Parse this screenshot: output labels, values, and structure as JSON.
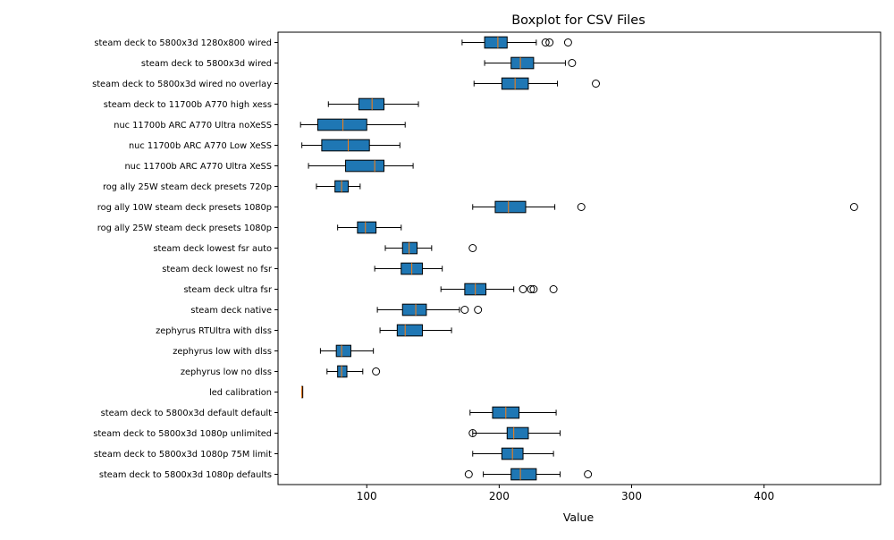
{
  "chart_data": {
    "type": "boxplot",
    "orientation": "horizontal",
    "title": "Boxplot for CSV Files",
    "xlabel": "Value",
    "ylabel": "",
    "xlim": [
      33,
      488
    ],
    "xticks": [
      100,
      200,
      300,
      400
    ],
    "grid": false,
    "legend": "none",
    "colors": {
      "box_fill": "#1f77b4",
      "median": "#ff7f0e",
      "edge": "#000000"
    },
    "categories": [
      "steam deck to 5800x3d 1280x800 wired",
      "steam deck to 5800x3d wired",
      "steam deck to 5800x3d wired no overlay",
      "steam deck to 11700b A770 high xess",
      "nuc 11700b ARC A770 Ultra noXeSS",
      "nuc 11700b ARC A770 Low XeSS",
      "nuc 11700b ARC A770 Ultra XeSS",
      "rog ally 25W steam deck presets 720p",
      "rog ally 10W steam deck presets 1080p",
      "rog ally 25W steam deck presets 1080p",
      "steam deck lowest fsr auto",
      "steam deck lowest no fsr",
      "steam deck ultra fsr",
      "steam deck native",
      "zephyrus RTUltra with dlss",
      "zephyrus low with dlss",
      "zephyrus low no dlss",
      "led calibration",
      "steam deck to 5800x3d default default",
      "steam deck to 5800x3d 1080p unlimited",
      "steam deck to 5800x3d 1080p 75M limit",
      "steam deck to 5800x3d 1080p defaults"
    ],
    "boxes": [
      {
        "whislo": 172,
        "q1": 189,
        "med": 199,
        "q3": 206,
        "whishi": 228,
        "fliers": [
          235,
          238,
          252
        ]
      },
      {
        "whislo": 189,
        "q1": 209,
        "med": 216,
        "q3": 226,
        "whishi": 250,
        "fliers": [
          255
        ]
      },
      {
        "whislo": 181,
        "q1": 202,
        "med": 212,
        "q3": 222,
        "whishi": 244,
        "fliers": [
          273
        ]
      },
      {
        "whislo": 71,
        "q1": 94,
        "med": 104,
        "q3": 113,
        "whishi": 139,
        "fliers": []
      },
      {
        "whislo": 50,
        "q1": 63,
        "med": 82,
        "q3": 100,
        "whishi": 129,
        "fliers": []
      },
      {
        "whislo": 51,
        "q1": 66,
        "med": 86,
        "q3": 102,
        "whishi": 125,
        "fliers": []
      },
      {
        "whislo": 56,
        "q1": 84,
        "med": 106,
        "q3": 113,
        "whishi": 135,
        "fliers": []
      },
      {
        "whislo": 62,
        "q1": 76,
        "med": 81,
        "q3": 86,
        "whishi": 95,
        "fliers": []
      },
      {
        "whislo": 180,
        "q1": 197,
        "med": 207,
        "q3": 220,
        "whishi": 242,
        "fliers": [
          262,
          468
        ]
      },
      {
        "whislo": 78,
        "q1": 93,
        "med": 99,
        "q3": 107,
        "whishi": 126,
        "fliers": []
      },
      {
        "whislo": 114,
        "q1": 127,
        "med": 132,
        "q3": 138,
        "whishi": 149,
        "fliers": [
          180
        ]
      },
      {
        "whislo": 106,
        "q1": 126,
        "med": 134,
        "q3": 142,
        "whishi": 157,
        "fliers": []
      },
      {
        "whislo": 156,
        "q1": 174,
        "med": 182,
        "q3": 190,
        "whishi": 211,
        "fliers": [
          218,
          224,
          226,
          241
        ]
      },
      {
        "whislo": 108,
        "q1": 127,
        "med": 137,
        "q3": 145,
        "whishi": 170,
        "fliers": [
          174,
          184
        ]
      },
      {
        "whislo": 110,
        "q1": 123,
        "med": 129,
        "q3": 142,
        "whishi": 164,
        "fliers": []
      },
      {
        "whislo": 65,
        "q1": 77,
        "med": 81,
        "q3": 88,
        "whishi": 105,
        "fliers": []
      },
      {
        "whislo": 70,
        "q1": 78,
        "med": 81,
        "q3": 85,
        "whishi": 97,
        "fliers": [
          107
        ]
      },
      {
        "whislo": 51,
        "q1": 51,
        "med": 51,
        "q3": 51,
        "whishi": 51,
        "fliers": []
      },
      {
        "whislo": 178,
        "q1": 195,
        "med": 205,
        "q3": 215,
        "whishi": 243,
        "fliers": []
      },
      {
        "whislo": 180,
        "q1": 206,
        "med": 211,
        "q3": 222,
        "whishi": 246,
        "fliers": [
          180
        ]
      },
      {
        "whislo": 180,
        "q1": 202,
        "med": 210,
        "q3": 218,
        "whishi": 241,
        "fliers": []
      },
      {
        "whislo": 188,
        "q1": 209,
        "med": 216,
        "q3": 228,
        "whishi": 246,
        "fliers": [
          177,
          267
        ]
      }
    ]
  }
}
